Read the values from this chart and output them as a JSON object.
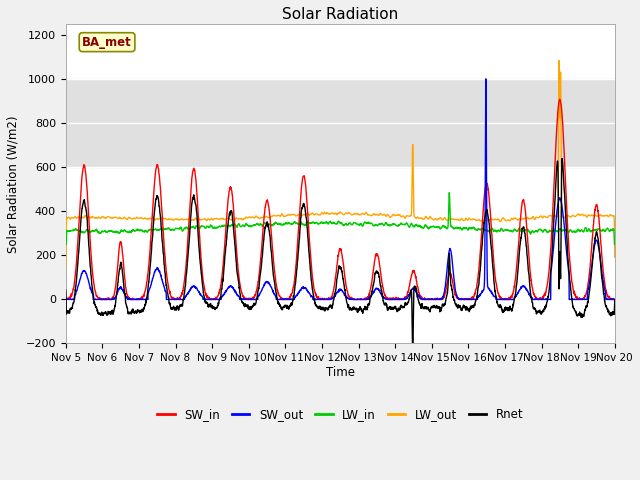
{
  "title": "Solar Radiation",
  "ylabel": "Solar Radiation (W/m2)",
  "xlabel": "Time",
  "ylim": [
    -200,
    1250
  ],
  "yticks": [
    -200,
    0,
    200,
    400,
    600,
    800,
    1000,
    1200
  ],
  "xlim": [
    0,
    15
  ],
  "xtick_labels": [
    "Nov 5",
    "Nov 6",
    "Nov 7",
    "Nov 8",
    "Nov 9",
    "Nov 10",
    "Nov 11",
    "Nov 12",
    "Nov 13",
    "Nov 14",
    "Nov 15",
    "Nov 16",
    "Nov 17",
    "Nov 18",
    "Nov 19",
    "Nov 20"
  ],
  "xtick_positions": [
    0,
    1,
    2,
    3,
    4,
    5,
    6,
    7,
    8,
    9,
    10,
    11,
    12,
    13,
    14,
    15
  ],
  "colors": {
    "SW_in": "#ff0000",
    "SW_out": "#0000ff",
    "LW_in": "#00cc00",
    "LW_out": "#ffa500",
    "Rnet": "#000000"
  },
  "legend_labels": [
    "SW_in",
    "SW_out",
    "LW_in",
    "LW_out",
    "Rnet"
  ],
  "site_label": "BA_met",
  "grid_color": "#ffffff",
  "plot_bg_color": "#ffffff",
  "fig_bg_color": "#f0f0f0",
  "shaded_ymin": 600,
  "shaded_ymax": 1000,
  "shaded_color": "#e0e0e0"
}
